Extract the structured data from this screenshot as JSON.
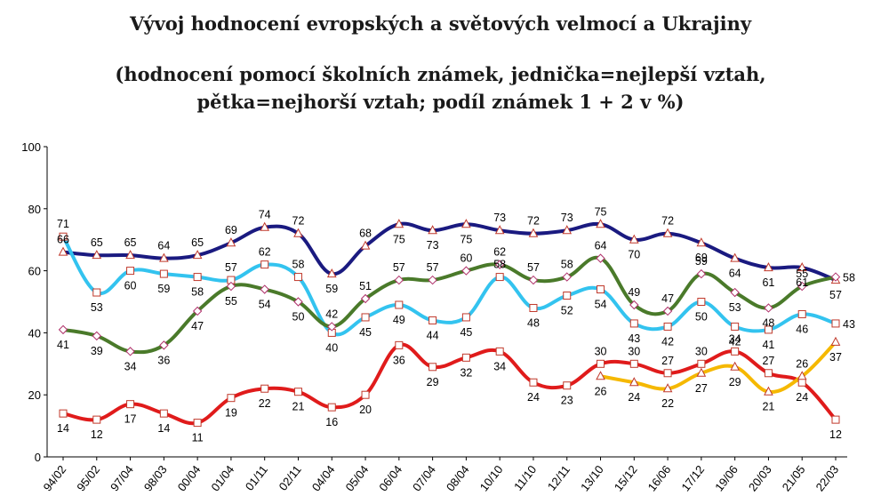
{
  "title": "Vývoj hodnocení evropských a světových velmocí a Ukrajiny",
  "subtitle_line1": "(hodnocení pomocí školních známek, jednička=nejlepší vztah,",
  "subtitle_line2": "pětka=nejhorší vztah; podíl známek 1 + 2 v %)",
  "chart_data": {
    "type": "line",
    "categories": [
      "94/02",
      "95/02",
      "97/04",
      "98/03",
      "00/04",
      "01/04",
      "01/11",
      "02/11",
      "04/04",
      "05/04",
      "06/04",
      "07/04",
      "08/04",
      "10/10",
      "11/10",
      "12/11",
      "13/10",
      "15/12",
      "16/06",
      "17/12",
      "19/06",
      "20/03",
      "21/05",
      "22/03"
    ],
    "ylim": [
      0,
      100
    ],
    "yticks": [
      0,
      20,
      40,
      60,
      80,
      100
    ],
    "grid": false,
    "legend": "none",
    "series": [
      {
        "color": "#1a1a80",
        "marker": "triangle",
        "values": [
          66,
          65,
          65,
          64,
          65,
          69,
          74,
          72,
          59,
          68,
          75,
          73,
          75,
          73,
          72,
          73,
          75,
          70,
          72,
          69,
          64,
          61,
          61,
          57
        ]
      },
      {
        "color": "#33c3ef",
        "marker": "square",
        "values": [
          71,
          53,
          60,
          59,
          58,
          57,
          62,
          58,
          40,
          45,
          49,
          44,
          45,
          58,
          48,
          52,
          54,
          43,
          42,
          50,
          42,
          41,
          46,
          43
        ]
      },
      {
        "color": "#4a7a2a",
        "marker": "diamond",
        "values": [
          41,
          39,
          34,
          36,
          47,
          55,
          54,
          50,
          42,
          51,
          57,
          57,
          60,
          62,
          57,
          58,
          64,
          49,
          47,
          59,
          53,
          48,
          55,
          58
        ]
      },
      {
        "color": "#e01b1b",
        "marker": "square",
        "values": [
          14,
          12,
          17,
          14,
          11,
          19,
          22,
          21,
          16,
          20,
          36,
          29,
          32,
          34,
          24,
          23,
          30,
          30,
          27,
          30,
          34,
          27,
          24,
          12
        ]
      },
      {
        "color": "#f5b800",
        "marker": "triangle",
        "values": [
          null,
          null,
          null,
          null,
          null,
          null,
          null,
          null,
          null,
          null,
          null,
          null,
          null,
          null,
          null,
          null,
          26,
          24,
          22,
          27,
          29,
          21,
          26,
          37
        ]
      }
    ]
  }
}
